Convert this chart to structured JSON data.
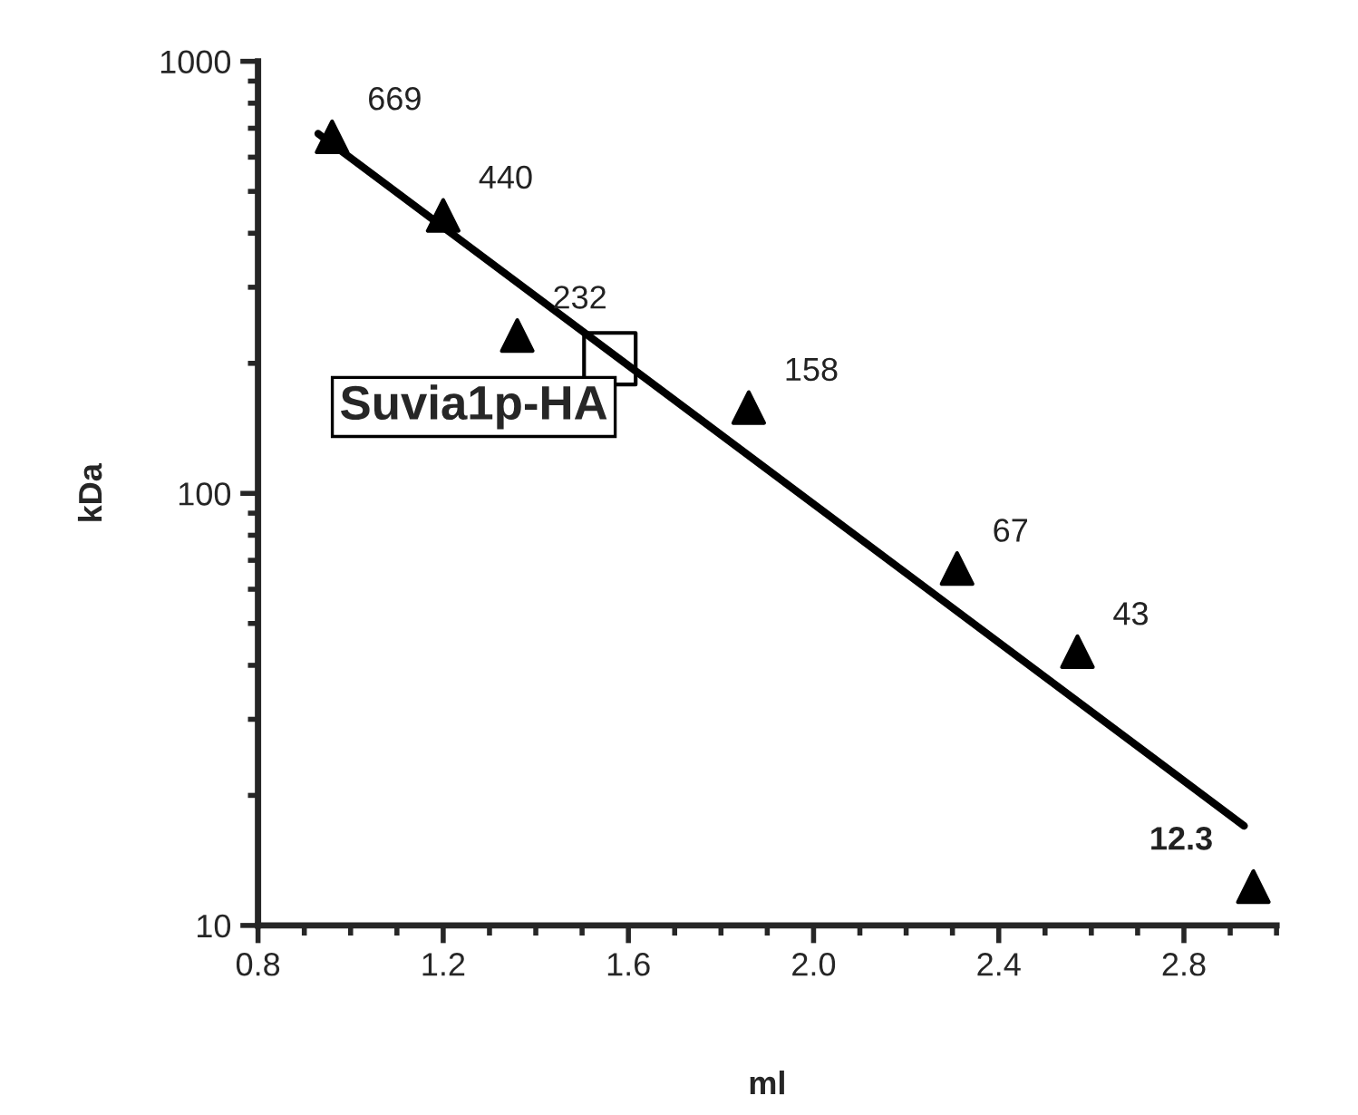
{
  "chart_data": {
    "type": "scatter",
    "xlabel": "ml",
    "ylabel": "kDa",
    "log": "y",
    "xlim": [
      0.8,
      3.0
    ],
    "xticks": [
      0.8,
      1.2,
      1.6,
      {
        "value": 2.0,
        "label": "2.0"
      },
      2.4,
      2.8
    ],
    "ylim": [
      10,
      1000
    ],
    "yticks": [
      10,
      100,
      1000
    ],
    "grid": false,
    "legend": false,
    "series": [
      {
        "marker": "triangle",
        "color": "#000000",
        "x": [
          0.96,
          1.2,
          1.36,
          1.86,
          2.31,
          2.57,
          2.95
        ],
        "values": [
          669,
          440,
          232,
          158,
          67,
          43,
          12.3
        ],
        "value_labels": [
          "669",
          "440",
          "232",
          "158",
          "67",
          "43",
          "12.3"
        ]
      },
      {
        "type": "line",
        "color": "#000000",
        "x": [
          0.93,
          2.93
        ],
        "values": [
          680,
          17
        ]
      },
      {
        "type": "scatter",
        "marker": "square",
        "color": "#000000",
        "x": [
          1.56
        ],
        "values": [
          205
        ]
      }
    ],
    "annotations": [
      "Suvia1p-HA"
    ]
  }
}
